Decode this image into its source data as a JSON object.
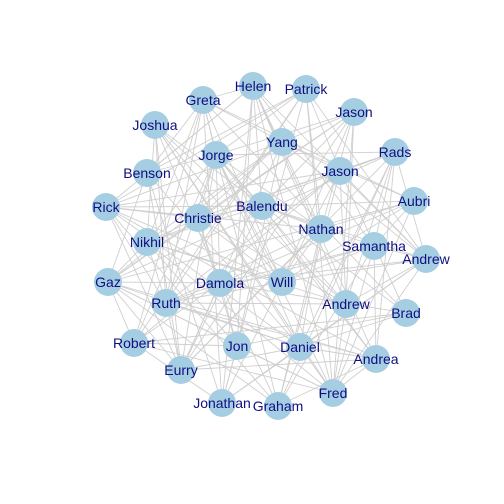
{
  "graph": {
    "type": "network",
    "colors": {
      "node": "#a6cee3",
      "edge": "#cfcfcf",
      "label": "#0f0f80",
      "background": "#ffffff"
    },
    "nodes": [
      "Helen",
      "Patrick",
      "Greta",
      "Jason",
      "Joshua",
      "Yang",
      "Rads",
      "Jorge",
      "Jason",
      "Benson",
      "Aubri",
      "Balendu",
      "Rick",
      "Christie",
      "Nathan",
      "Nikhil",
      "Samantha",
      "Andrew",
      "Gaz",
      "Damola",
      "Will",
      "Ruth",
      "Andrew",
      "Brad",
      "Robert",
      "Jon",
      "Daniel",
      "Andrea",
      "Eurry",
      "Fred",
      "Jonathan",
      "Graham"
    ]
  }
}
